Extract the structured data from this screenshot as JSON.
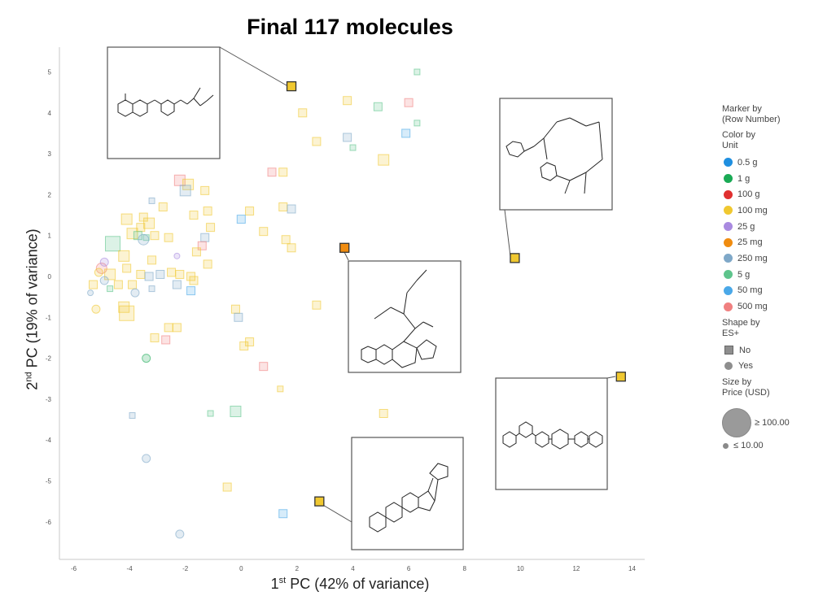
{
  "chart_data": {
    "type": "scatter",
    "title": "Final 117 molecules",
    "xlabel": "PC (42% of variance)",
    "xlabel_sup": "st",
    "xlabel_prefix": "1",
    "ylabel": "PC (19% of variance)",
    "ylabel_sup": "nd",
    "ylabel_prefix": "2",
    "xlim": [
      -6.5,
      14.7
    ],
    "ylim": [
      -7,
      5.6
    ],
    "xticks": [
      -6,
      -4,
      -2,
      0,
      2,
      4,
      6,
      8,
      10,
      12,
      14
    ],
    "yticks": [
      -6,
      -5,
      -4,
      -3,
      -2,
      -1,
      0,
      1,
      2,
      3,
      4,
      5
    ],
    "grid": false,
    "legend_position": "right",
    "legend": {
      "marker_by": "Marker by",
      "marker_by_value": "(Row Number)",
      "color_by": "Color by",
      "color_by_value": "Unit",
      "color_units": [
        {
          "label": "0.5 g",
          "color": "#1f8fe0"
        },
        {
          "label": "1 g",
          "color": "#1aaa55"
        },
        {
          "label": "100 g",
          "color": "#e03030"
        },
        {
          "label": "100 mg",
          "color": "#f0c830"
        },
        {
          "label": "25 g",
          "color": "#a98ae0"
        },
        {
          "label": "25 mg",
          "color": "#f08c10"
        },
        {
          "label": "250 mg",
          "color": "#7fa8c8"
        },
        {
          "label": "5 g",
          "color": "#5ec48c"
        },
        {
          "label": "50 mg",
          "color": "#4aa8e8"
        },
        {
          "label": "500 mg",
          "color": "#f08080"
        }
      ],
      "shape_by": "Shape by",
      "shape_by_value": "ES+",
      "shapes": [
        {
          "label": "No",
          "shape": "square"
        },
        {
          "label": "Yes",
          "shape": "circle"
        }
      ],
      "size_by": "Size by",
      "size_by_value": "Price (USD)",
      "sizes": [
        {
          "label": "≥ 100.00"
        },
        {
          "label": "≤ 10.00"
        }
      ]
    },
    "highlighted_points": [
      {
        "x": 1.8,
        "y": 4.65,
        "unit": "100 mg",
        "shape": "square"
      },
      {
        "x": 3.7,
        "y": 0.7,
        "unit": "25 mg",
        "shape": "square"
      },
      {
        "x": 9.8,
        "y": 0.45,
        "unit": "100 mg",
        "shape": "square"
      },
      {
        "x": 13.6,
        "y": -2.45,
        "unit": "100 mg",
        "shape": "square"
      },
      {
        "x": 2.8,
        "y": -5.5,
        "unit": "100 mg",
        "shape": "square"
      }
    ],
    "points": [
      {
        "x": 6.3,
        "y": 5.0,
        "unit": "5 g",
        "shape": "square",
        "size": 1
      },
      {
        "x": 3.8,
        "y": 4.3,
        "unit": "100 mg",
        "shape": "square",
        "size": 2
      },
      {
        "x": 4.9,
        "y": 4.15,
        "unit": "5 g",
        "shape": "square",
        "size": 2
      },
      {
        "x": 6.0,
        "y": 4.25,
        "unit": "500 mg",
        "shape": "square",
        "size": 2
      },
      {
        "x": 2.2,
        "y": 4.0,
        "unit": "100 mg",
        "shape": "square",
        "size": 2
      },
      {
        "x": 6.3,
        "y": 3.75,
        "unit": "5 g",
        "shape": "square",
        "size": 1
      },
      {
        "x": 5.9,
        "y": 3.5,
        "unit": "50 mg",
        "shape": "square",
        "size": 2
      },
      {
        "x": 3.8,
        "y": 3.4,
        "unit": "250 mg",
        "shape": "square",
        "size": 2
      },
      {
        "x": 2.7,
        "y": 3.3,
        "unit": "100 mg",
        "shape": "square",
        "size": 2
      },
      {
        "x": 4.0,
        "y": 3.15,
        "unit": "5 g",
        "shape": "square",
        "size": 1
      },
      {
        "x": 5.1,
        "y": 2.85,
        "unit": "100 mg",
        "shape": "square",
        "size": 3
      },
      {
        "x": 1.1,
        "y": 2.55,
        "unit": "500 mg",
        "shape": "square",
        "size": 2
      },
      {
        "x": 1.5,
        "y": 2.55,
        "unit": "100 mg",
        "shape": "square",
        "size": 2
      },
      {
        "x": -2.2,
        "y": 2.35,
        "unit": "500 mg",
        "shape": "square",
        "size": 3
      },
      {
        "x": -1.9,
        "y": 2.25,
        "unit": "100 mg",
        "shape": "square",
        "size": 3
      },
      {
        "x": -2.0,
        "y": 2.1,
        "unit": "250 mg",
        "shape": "square",
        "size": 3
      },
      {
        "x": -1.3,
        "y": 2.1,
        "unit": "100 mg",
        "shape": "square",
        "size": 2
      },
      {
        "x": -3.2,
        "y": 1.85,
        "unit": "250 mg",
        "shape": "square",
        "size": 1
      },
      {
        "x": -2.8,
        "y": 1.7,
        "unit": "100 mg",
        "shape": "square",
        "size": 2
      },
      {
        "x": 1.5,
        "y": 1.7,
        "unit": "100 mg",
        "shape": "square",
        "size": 2
      },
      {
        "x": 1.8,
        "y": 1.65,
        "unit": "250 mg",
        "shape": "square",
        "size": 2
      },
      {
        "x": -1.2,
        "y": 1.6,
        "unit": "100 mg",
        "shape": "square",
        "size": 2
      },
      {
        "x": -1.7,
        "y": 1.5,
        "unit": "100 mg",
        "shape": "square",
        "size": 2
      },
      {
        "x": 0.3,
        "y": 1.6,
        "unit": "100 mg",
        "shape": "square",
        "size": 2
      },
      {
        "x": -4.1,
        "y": 1.4,
        "unit": "100 mg",
        "shape": "square",
        "size": 3
      },
      {
        "x": -3.5,
        "y": 1.45,
        "unit": "100 mg",
        "shape": "square",
        "size": 2
      },
      {
        "x": -3.3,
        "y": 1.3,
        "unit": "100 mg",
        "shape": "square",
        "size": 3
      },
      {
        "x": 0.0,
        "y": 1.4,
        "unit": "50 mg",
        "shape": "square",
        "size": 2
      },
      {
        "x": -3.6,
        "y": 1.2,
        "unit": "100 mg",
        "shape": "square",
        "size": 2
      },
      {
        "x": -1.1,
        "y": 1.2,
        "unit": "100 mg",
        "shape": "square",
        "size": 2
      },
      {
        "x": 0.8,
        "y": 1.1,
        "unit": "100 mg",
        "shape": "square",
        "size": 2
      },
      {
        "x": -3.9,
        "y": 1.05,
        "unit": "100 mg",
        "shape": "square",
        "size": 3
      },
      {
        "x": -3.7,
        "y": 1.0,
        "unit": "5 g",
        "shape": "square",
        "size": 2
      },
      {
        "x": -3.1,
        "y": 1.0,
        "unit": "100 mg",
        "shape": "square",
        "size": 2
      },
      {
        "x": -2.6,
        "y": 0.95,
        "unit": "100 mg",
        "shape": "square",
        "size": 2
      },
      {
        "x": -3.4,
        "y": 0.95,
        "unit": "5 g",
        "shape": "square",
        "size": 1
      },
      {
        "x": -1.3,
        "y": 0.95,
        "unit": "250 mg",
        "shape": "square",
        "size": 2
      },
      {
        "x": -4.6,
        "y": 0.8,
        "unit": "5 g",
        "shape": "square",
        "size": 4
      },
      {
        "x": -1.4,
        "y": 0.75,
        "unit": "500 mg",
        "shape": "square",
        "size": 2
      },
      {
        "x": 1.6,
        "y": 0.9,
        "unit": "100 mg",
        "shape": "square",
        "size": 2
      },
      {
        "x": 1.8,
        "y": 0.7,
        "unit": "100 mg",
        "shape": "square",
        "size": 2
      },
      {
        "x": -1.6,
        "y": 0.6,
        "unit": "100 mg",
        "shape": "square",
        "size": 2
      },
      {
        "x": -4.2,
        "y": 0.5,
        "unit": "100 mg",
        "shape": "square",
        "size": 3
      },
      {
        "x": -3.2,
        "y": 0.4,
        "unit": "100 mg",
        "shape": "square",
        "size": 2
      },
      {
        "x": -1.2,
        "y": 0.3,
        "unit": "100 mg",
        "shape": "square",
        "size": 2
      },
      {
        "x": -5.0,
        "y": 0.2,
        "unit": "500 mg",
        "shape": "circle",
        "size": 3
      },
      {
        "x": -4.7,
        "y": 0.05,
        "unit": "100 mg",
        "shape": "square",
        "size": 3
      },
      {
        "x": -4.1,
        "y": 0.2,
        "unit": "100 mg",
        "shape": "square",
        "size": 2
      },
      {
        "x": -3.6,
        "y": 0.05,
        "unit": "100 mg",
        "shape": "square",
        "size": 2
      },
      {
        "x": -3.3,
        "y": 0.0,
        "unit": "250 mg",
        "shape": "square",
        "size": 2
      },
      {
        "x": -2.5,
        "y": 0.1,
        "unit": "100 mg",
        "shape": "square",
        "size": 2
      },
      {
        "x": -2.2,
        "y": 0.05,
        "unit": "100 mg",
        "shape": "square",
        "size": 2
      },
      {
        "x": -2.9,
        "y": 0.05,
        "unit": "250 mg",
        "shape": "square",
        "size": 2
      },
      {
        "x": -1.8,
        "y": 0.0,
        "unit": "100 mg",
        "shape": "square",
        "size": 2
      },
      {
        "x": -5.1,
        "y": 0.1,
        "unit": "100 mg",
        "shape": "circle",
        "size": 2
      },
      {
        "x": -4.9,
        "y": -0.1,
        "unit": "250 mg",
        "shape": "circle",
        "size": 2
      },
      {
        "x": -4.4,
        "y": -0.2,
        "unit": "100 mg",
        "shape": "square",
        "size": 2
      },
      {
        "x": -3.9,
        "y": -0.2,
        "unit": "100 mg",
        "shape": "square",
        "size": 2
      },
      {
        "x": -5.3,
        "y": -0.2,
        "unit": "100 mg",
        "shape": "square",
        "size": 2
      },
      {
        "x": -4.7,
        "y": -0.3,
        "unit": "5 g",
        "shape": "square",
        "size": 1
      },
      {
        "x": -2.3,
        "y": -0.2,
        "unit": "250 mg",
        "shape": "square",
        "size": 2
      },
      {
        "x": -1.7,
        "y": -0.1,
        "unit": "100 mg",
        "shape": "square",
        "size": 2
      },
      {
        "x": -3.2,
        "y": -0.3,
        "unit": "250 mg",
        "shape": "square",
        "size": 1
      },
      {
        "x": -5.4,
        "y": -0.4,
        "unit": "250 mg",
        "shape": "circle",
        "size": 1
      },
      {
        "x": -3.8,
        "y": -0.4,
        "unit": "250 mg",
        "shape": "circle",
        "size": 2
      },
      {
        "x": -1.8,
        "y": -0.35,
        "unit": "50 mg",
        "shape": "square",
        "size": 2
      },
      {
        "x": -5.2,
        "y": -0.8,
        "unit": "100 mg",
        "shape": "circle",
        "size": 2
      },
      {
        "x": -4.1,
        "y": -0.9,
        "unit": "100 mg",
        "shape": "square",
        "size": 4
      },
      {
        "x": -4.2,
        "y": -0.75,
        "unit": "100 mg",
        "shape": "square",
        "size": 3
      },
      {
        "x": -0.2,
        "y": -0.8,
        "unit": "100 mg",
        "shape": "square",
        "size": 2
      },
      {
        "x": -0.1,
        "y": -1.0,
        "unit": "250 mg",
        "shape": "square",
        "size": 2
      },
      {
        "x": 2.7,
        "y": -0.7,
        "unit": "100 mg",
        "shape": "square",
        "size": 2
      },
      {
        "x": -2.6,
        "y": -1.25,
        "unit": "100 mg",
        "shape": "square",
        "size": 2
      },
      {
        "x": -2.3,
        "y": -1.25,
        "unit": "100 mg",
        "shape": "square",
        "size": 2
      },
      {
        "x": -2.7,
        "y": -1.55,
        "unit": "500 mg",
        "shape": "square",
        "size": 2
      },
      {
        "x": -3.1,
        "y": -1.5,
        "unit": "100 mg",
        "shape": "square",
        "size": 2
      },
      {
        "x": 0.1,
        "y": -1.7,
        "unit": "100 mg",
        "shape": "square",
        "size": 2
      },
      {
        "x": 0.3,
        "y": -1.6,
        "unit": "100 mg",
        "shape": "square",
        "size": 2
      },
      {
        "x": -3.4,
        "y": -2.0,
        "unit": "1 g",
        "shape": "circle",
        "size": 2
      },
      {
        "x": 0.8,
        "y": -2.2,
        "unit": "500 mg",
        "shape": "square",
        "size": 2
      },
      {
        "x": 1.4,
        "y": -2.75,
        "unit": "100 mg",
        "shape": "square",
        "size": 1
      },
      {
        "x": -0.2,
        "y": -3.3,
        "unit": "5 g",
        "shape": "square",
        "size": 3
      },
      {
        "x": -1.1,
        "y": -3.35,
        "unit": "5 g",
        "shape": "square",
        "size": 1
      },
      {
        "x": -3.9,
        "y": -3.4,
        "unit": "250 mg",
        "shape": "square",
        "size": 1
      },
      {
        "x": 5.1,
        "y": -3.35,
        "unit": "100 mg",
        "shape": "square",
        "size": 2
      },
      {
        "x": -3.4,
        "y": -4.45,
        "unit": "250 mg",
        "shape": "circle",
        "size": 2
      },
      {
        "x": -0.5,
        "y": -5.15,
        "unit": "100 mg",
        "shape": "square",
        "size": 2
      },
      {
        "x": 1.5,
        "y": -5.8,
        "unit": "50 mg",
        "shape": "square",
        "size": 2
      },
      {
        "x": -2.2,
        "y": -6.3,
        "unit": "250 mg",
        "shape": "circle",
        "size": 2
      },
      {
        "x": -2.3,
        "y": 0.5,
        "unit": "25 g",
        "shape": "circle",
        "size": 1
      },
      {
        "x": -4.9,
        "y": 0.35,
        "unit": "25 g",
        "shape": "circle",
        "size": 2
      },
      {
        "x": -3.5,
        "y": 0.9,
        "unit": "250 mg",
        "shape": "circle",
        "size": 3
      }
    ]
  }
}
